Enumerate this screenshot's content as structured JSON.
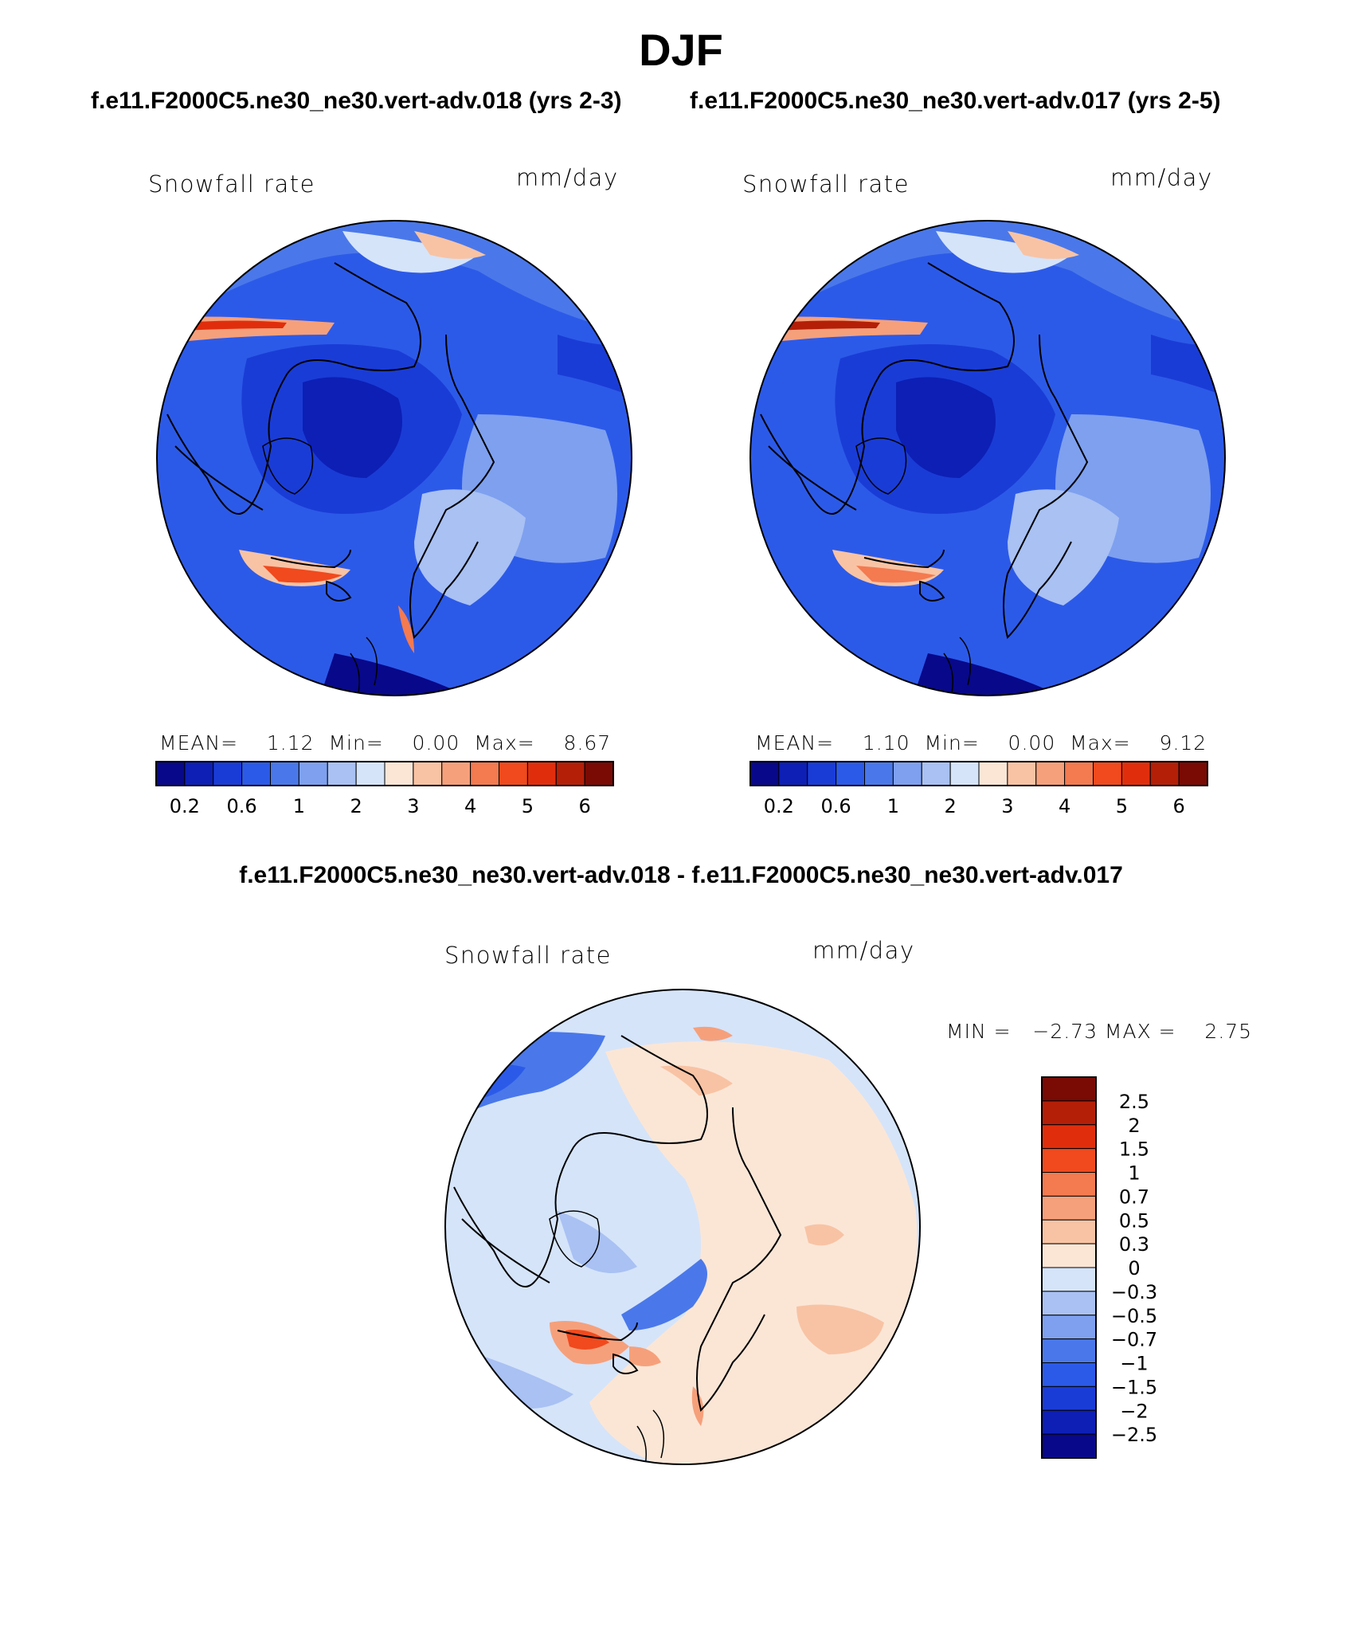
{
  "title": "DJF",
  "run_a": "f.e11.F2000C5.ne30_ne30.vert-adv.018",
  "run_b": "f.e11.F2000C5.ne30_ne30.vert-adv.017",
  "subtitle_a": "f.e11.F2000C5.ne30_ne30.vert-adv.018 (yrs 2-3)",
  "subtitle_b": "f.e11.F2000C5.ne30_ne30.vert-adv.017 (yrs 2-5)",
  "diff_title": "f.e11.F2000C5.ne30_ne30.vert-adv.018 - f.e11.F2000C5.ne30_ne30.vert-adv.017",
  "panels": [
    {
      "variable": "Snowfall rate",
      "units": "mm/day",
      "stats": "MEAN=    1.12  Min=    0.00  Max=    8.67",
      "mean": 1.12,
      "min": 0.0,
      "max": 8.67
    },
    {
      "variable": "Snowfall rate",
      "units": "mm/day",
      "stats": "MEAN=    1.10  Min=    0.00  Max=    9.12",
      "mean": 1.1,
      "min": 0.0,
      "max": 9.12
    }
  ],
  "diff_panel": {
    "variable": "Snowfall rate",
    "units": "mm/day",
    "stats": "MIN =   −2.73 MAX =    2.75",
    "min": -2.73,
    "max": 2.75
  },
  "colorbar_abs": {
    "labels": [
      "0.2",
      "0.6",
      "1",
      "2",
      "3",
      "4",
      "5",
      "6"
    ],
    "colors": [
      "#08088a",
      "#0d1fb5",
      "#1a3cd6",
      "#2c5ae8",
      "#4a78ea",
      "#7ea0ef",
      "#a9c1f3",
      "#d5e4f9",
      "#fbe6d6",
      "#f8c3a4",
      "#f6a07b",
      "#f47a50",
      "#f04a1e",
      "#e02e0c",
      "#b41f08",
      "#7a0a04"
    ]
  },
  "colorbar_diff": {
    "labels": [
      "2.5",
      "2",
      "1.5",
      "1",
      "0.7",
      "0.5",
      "0.3",
      "0",
      "−0.3",
      "−0.5",
      "−0.7",
      "−1",
      "−1.5",
      "−2",
      "−2.5"
    ],
    "colors": [
      "#7a0a04",
      "#b41f08",
      "#e02e0c",
      "#f04a1e",
      "#f47a50",
      "#f6a07b",
      "#f8c3a4",
      "#fbe6d6",
      "#d5e4f9",
      "#a9c1f3",
      "#7ea0ef",
      "#4a78ea",
      "#2c5ae8",
      "#1a3cd6",
      "#0d1fb5",
      "#08088a"
    ]
  }
}
